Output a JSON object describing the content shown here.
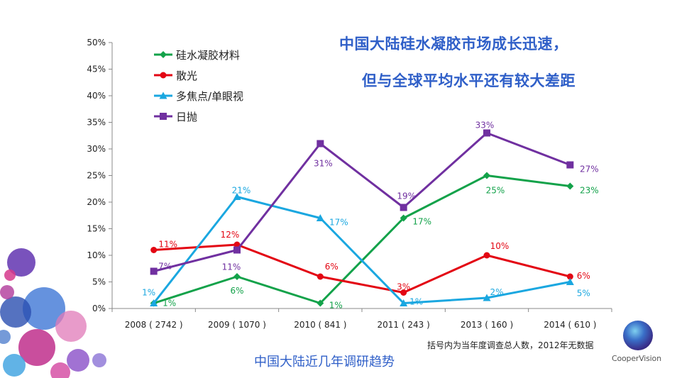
{
  "headline": {
    "line1": "中国大陆硅水凝胶市场成长迅速，",
    "line2": "但与全球平均水平还有较大差距"
  },
  "footnote": "括号内为当年度调查总人数，2012年无数据",
  "caption": "中国大陆近几年调研趋势",
  "logo": {
    "text": "CooperVision",
    "icon": "coopervision-orb-logo"
  },
  "colors": {
    "headline": "#2f5fc8",
    "silicone_hydrogel": "#13a24a",
    "scatter_light": "#e30613",
    "multifocal": "#1aa7e0",
    "daily": "#7030a0"
  },
  "chart_data": {
    "type": "line",
    "categories": [
      "2008 ( 2742 )",
      "2009 ( 1070 )",
      "2010 ( 841 )",
      "2011 ( 243 )",
      "2013 ( 160 )",
      "2014 ( 610 )"
    ],
    "ylim": [
      0,
      50
    ],
    "yticks": [
      "0%",
      "5%",
      "10%",
      "15%",
      "20%",
      "25%",
      "30%",
      "35%",
      "40%",
      "45%",
      "50%"
    ],
    "grid": false,
    "legend_position": "top-left",
    "series": [
      {
        "name": "硅水凝胶材料",
        "values": [
          1,
          6,
          1,
          17,
          25,
          23
        ],
        "labels": [
          "1%",
          "6%",
          "1%",
          "17%",
          "25%",
          "23%"
        ],
        "marker": "diamond",
        "color": "#13a24a"
      },
      {
        "name": "散光",
        "values": [
          11,
          12,
          6,
          3,
          10,
          6
        ],
        "labels": [
          "11%",
          "12%",
          "6%",
          "3%",
          "10%",
          "6%"
        ],
        "marker": "circle",
        "color": "#e30613"
      },
      {
        "name": "多焦点/单眼视",
        "values": [
          1,
          21,
          17,
          1,
          2,
          5
        ],
        "labels": [
          "1%",
          "21%",
          "17%",
          "1%",
          "2%",
          "5%"
        ],
        "marker": "triangle",
        "color": "#1aa7e0"
      },
      {
        "name": "日抛",
        "values": [
          7,
          11,
          31,
          19,
          33,
          27
        ],
        "labels": [
          "7%",
          "11%",
          "31%",
          "19%",
          "33%",
          "27%"
        ],
        "marker": "square",
        "color": "#7030a0"
      }
    ]
  }
}
